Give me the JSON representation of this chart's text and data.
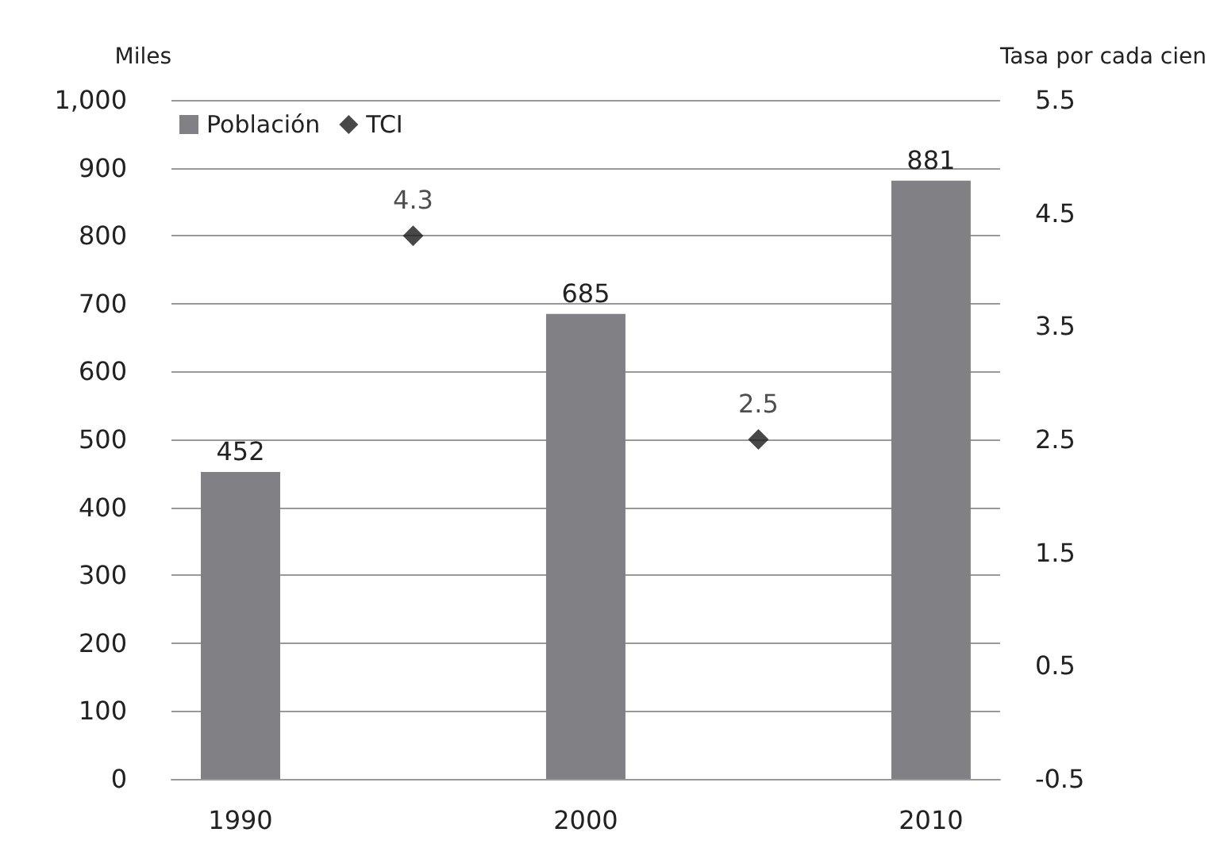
{
  "chart_data": {
    "type": "bar",
    "ylabel": "Miles",
    "y2label": "Tasa por cada cien",
    "x": [
      1990,
      2000,
      2010
    ],
    "xlim": [
      1988,
      2012
    ],
    "xticks": [
      1990,
      2000,
      2010
    ],
    "ylim": [
      0,
      1000
    ],
    "yticks": [
      0,
      100,
      200,
      300,
      400,
      500,
      600,
      700,
      800,
      900,
      {
        "value": 1000,
        "label": "1,000"
      }
    ],
    "y2lim": [
      -0.5,
      5.5
    ],
    "y2ticks": [
      -0.5,
      0.5,
      1.5,
      2.5,
      3.5,
      4.5,
      5.5
    ],
    "series": [
      {
        "name": "Población",
        "color": "#818185",
        "values": [
          452,
          685,
          881
        ]
      },
      {
        "name": "TCI",
        "type": "scatter",
        "axis": "y2",
        "x": [
          1995,
          2005
        ],
        "values": [
          4.3,
          2.5
        ],
        "color": "#1a1a1a",
        "marker": "diamond"
      }
    ],
    "grid": "y",
    "legend": "top left",
    "data_labels": true
  }
}
